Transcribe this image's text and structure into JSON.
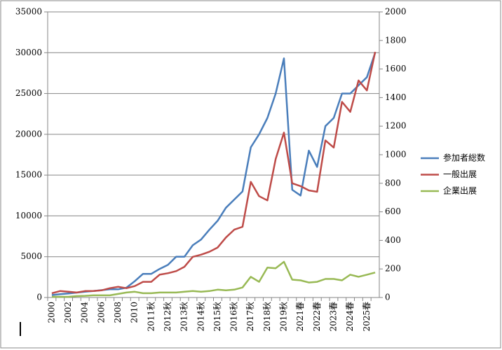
{
  "chart_data": {
    "type": "line",
    "categories": [
      "2000",
      null,
      "2002",
      null,
      "2004",
      null,
      "2006",
      null,
      "2008",
      null,
      "2010",
      null,
      "2011秋",
      null,
      "2012秋",
      null,
      "2013秋",
      null,
      "2014秋",
      null,
      "2015秋",
      null,
      "2016秋",
      null,
      "2017秋",
      null,
      "2018秋",
      null,
      "2019秋",
      null,
      "2021春",
      null,
      "2022春",
      null,
      "2023春",
      null,
      "2024春",
      null,
      "2025春",
      null
    ],
    "series": [
      {
        "name": "参加者総数",
        "color": "#4a7ebb",
        "values": [
          300,
          400,
          500,
          600,
          700,
          800,
          900,
          1000,
          1000,
          1200,
          2000,
          2900,
          2900,
          3500,
          4000,
          5000,
          5000,
          6400,
          7100,
          8300,
          9400,
          11000,
          12000,
          13000,
          18400,
          20000,
          22000,
          25000,
          29300,
          13200,
          12500,
          18000,
          16000,
          21000,
          22000,
          25000,
          25000,
          26000,
          27000,
          30000
        ]
      },
      {
        "name": "一般出展",
        "color": "#be4b48",
        "axis": "y2",
        "values": [
          30,
          45,
          40,
          35,
          45,
          45,
          50,
          65,
          75,
          65,
          80,
          110,
          110,
          160,
          170,
          185,
          215,
          285,
          300,
          320,
          350,
          420,
          475,
          495,
          810,
          710,
          680,
          970,
          1155,
          800,
          780,
          750,
          740,
          1100,
          1050,
          1370,
          1300,
          1520,
          1450,
          1720
        ]
      },
      {
        "name": "企業出展",
        "color": "#98b954",
        "axis": "y2",
        "values": [
          5,
          5,
          5,
          10,
          12,
          15,
          15,
          15,
          25,
          35,
          40,
          30,
          30,
          35,
          35,
          35,
          40,
          45,
          40,
          45,
          55,
          50,
          55,
          70,
          145,
          110,
          210,
          205,
          250,
          125,
          120,
          105,
          110,
          130,
          130,
          120,
          160,
          145,
          160,
          175
        ]
      }
    ],
    "ylim": [
      0,
      35000
    ],
    "yticks": [
      0,
      5000,
      10000,
      15000,
      20000,
      25000,
      30000,
      35000
    ],
    "y2lim": [
      0,
      2000
    ],
    "y2ticks": [
      0,
      200,
      400,
      600,
      800,
      1000,
      1200,
      1400,
      1600,
      1800,
      2000
    ],
    "grid": true,
    "legend": "right"
  }
}
